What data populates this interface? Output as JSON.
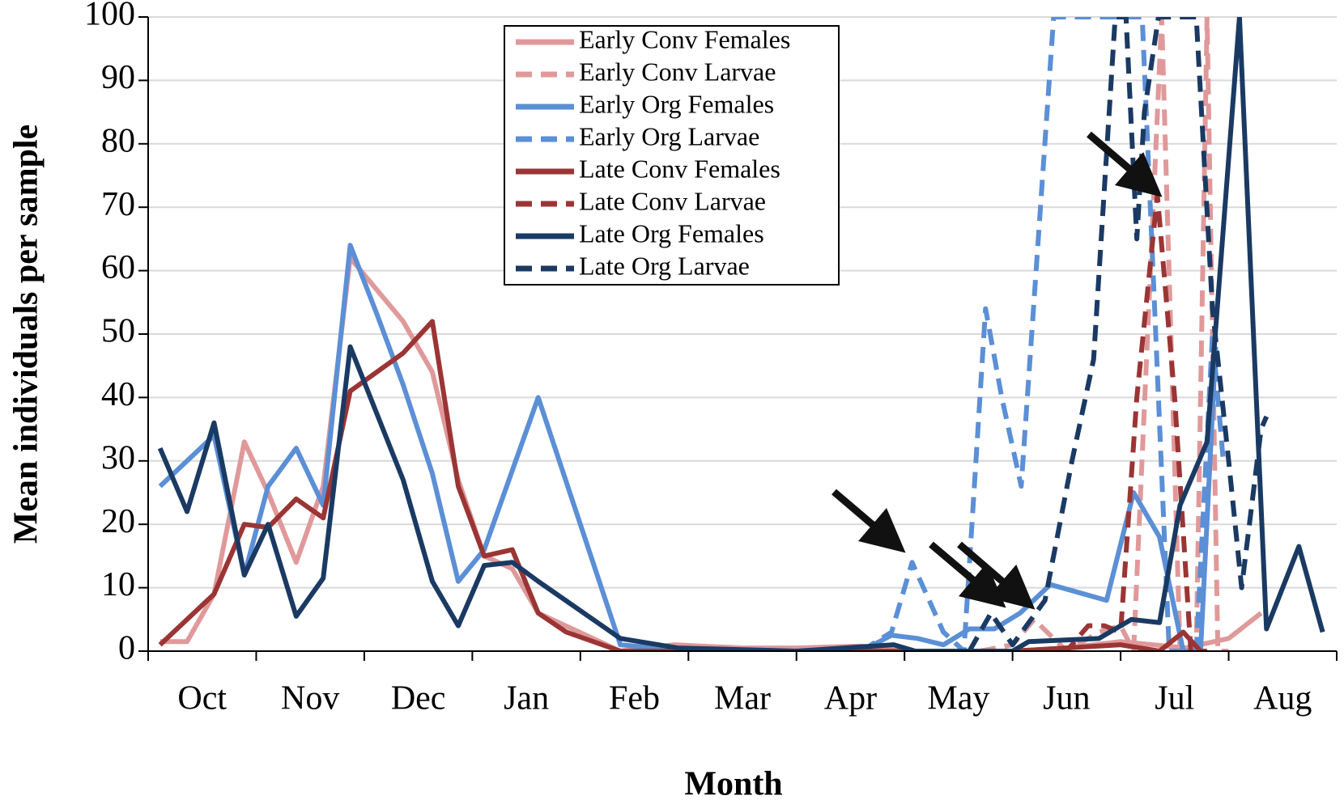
{
  "chart_data": {
    "type": "line",
    "xlabel": "Month",
    "ylabel": "Mean individuals per sample",
    "categories": [
      "Oct",
      "Nov",
      "Dec",
      "Jan",
      "Feb",
      "Mar",
      "Apr",
      "May",
      "Jun",
      "Jul",
      "Aug"
    ],
    "xlim": [
      0,
      11
    ],
    "xticks": [
      0,
      1,
      2,
      3,
      4,
      5,
      6,
      7,
      8,
      9,
      10,
      11
    ],
    "ylim": [
      0,
      100
    ],
    "yticks": [
      0,
      10,
      20,
      30,
      40,
      50,
      60,
      70,
      80,
      90,
      100
    ],
    "grid": true,
    "legend": "top",
    "series": [
      {
        "name": "Early Conv Females",
        "color": "#e0999a",
        "dashed": false,
        "x": [
          0.11,
          0.36,
          0.61,
          0.89,
          1.11,
          1.37,
          1.62,
          1.87,
          2.36,
          2.63,
          2.87,
          3.11,
          3.37,
          3.61,
          4.37,
          4.87,
          5.5,
          6.0,
          6.6,
          7.0,
          8.0,
          8.5,
          9.0,
          9.6,
          10.0,
          10.3
        ],
        "values": [
          1.5,
          1.5,
          9,
          33,
          25,
          14,
          26,
          62,
          52,
          44,
          27,
          15,
          13,
          6,
          0,
          1,
          0.5,
          0.5,
          0.8,
          0,
          0,
          0.5,
          1.5,
          0.5,
          2,
          6
        ]
      },
      {
        "name": "Early Conv Larvae",
        "color": "#e0999a",
        "dashed": true,
        "x": [
          7.0,
          7.7,
          8.0,
          8.2,
          8.5,
          8.8,
          9.0,
          9.12,
          9.38,
          9.55,
          9.7,
          9.8,
          9.9,
          10.0
        ],
        "values": [
          0,
          0,
          1,
          5,
          0,
          3,
          4,
          0,
          100,
          0,
          0,
          100,
          0,
          0
        ]
      },
      {
        "name": "Early Org Females",
        "color": "#5b8fd6",
        "dashed": false,
        "x": [
          0.11,
          0.61,
          0.89,
          1.11,
          1.37,
          1.62,
          1.87,
          2.12,
          2.36,
          2.63,
          2.87,
          3.11,
          3.61,
          4.37,
          5.0,
          6.0,
          6.6,
          6.88,
          7.12,
          7.36,
          7.6,
          7.83,
          8.07,
          8.35,
          8.87,
          9.12,
          9.36,
          9.58,
          9.74,
          9.88
        ],
        "values": [
          26,
          34,
          12,
          26,
          32,
          23,
          64,
          53,
          42,
          28,
          11,
          16,
          40,
          1,
          0,
          0,
          0,
          2.5,
          2,
          1,
          3.5,
          3.5,
          6,
          10.5,
          8,
          25,
          18,
          0,
          0,
          48
        ]
      },
      {
        "name": "Early Org Larvae",
        "color": "#5b8fd6",
        "dashed": true,
        "x": [
          6.6,
          6.88,
          7.07,
          7.36,
          7.55,
          7.75,
          7.9,
          8.08,
          8.38,
          9.2,
          9.3,
          9.45,
          9.7,
          9.85,
          9.95
        ],
        "values": [
          0,
          3,
          14,
          3,
          0,
          54,
          40,
          26,
          100,
          100,
          60,
          0,
          0,
          50,
          30
        ]
      },
      {
        "name": "Late Conv Females",
        "color": "#9b3535",
        "dashed": false,
        "x": [
          0.11,
          0.61,
          0.89,
          1.11,
          1.37,
          1.62,
          1.87,
          2.36,
          2.63,
          2.87,
          3.11,
          3.37,
          3.61,
          3.87,
          4.37,
          5.0,
          6.0,
          7.0,
          8.0,
          9.0,
          9.36,
          9.58,
          9.74
        ],
        "values": [
          1,
          9,
          20,
          19.5,
          24,
          21,
          41,
          47,
          52,
          26,
          15,
          16,
          6,
          3,
          0,
          0,
          0,
          0,
          0,
          1,
          0,
          3,
          0
        ]
      },
      {
        "name": "Late Conv Larvae",
        "color": "#9b3535",
        "dashed": true,
        "x": [
          8.0,
          8.5,
          8.7,
          8.85,
          9.0,
          9.15,
          9.34,
          9.5,
          9.65,
          9.8
        ],
        "values": [
          0,
          0,
          4,
          4,
          3,
          40,
          72,
          40,
          0,
          0
        ]
      },
      {
        "name": "Late Org Females",
        "color": "#1a3a63",
        "dashed": false,
        "x": [
          0.11,
          0.36,
          0.61,
          0.89,
          1.11,
          1.37,
          1.62,
          1.87,
          2.36,
          2.63,
          2.87,
          3.11,
          3.37,
          3.61,
          4.37,
          4.9,
          6.0,
          6.9,
          7.1,
          8.0,
          8.15,
          8.8,
          9.1,
          9.36,
          9.55,
          9.8,
          10.1,
          10.35,
          10.65,
          10.87
        ],
        "values": [
          32,
          22,
          36,
          12,
          20,
          5.5,
          11.5,
          48,
          27,
          11,
          4,
          13.5,
          14,
          11,
          2,
          0.5,
          0,
          1,
          0,
          0,
          1.5,
          2,
          5,
          4.5,
          23,
          33,
          100,
          3.5,
          16.5,
          3
        ]
      },
      {
        "name": "Late Org Larvae",
        "color": "#1a3a63",
        "dashed": true,
        "x": [
          7.6,
          7.8,
          8.0,
          8.3,
          8.55,
          8.75,
          8.95,
          9.05,
          9.15,
          9.22,
          9.35,
          9.7,
          9.85,
          10.0,
          10.12,
          10.3,
          10.35
        ],
        "values": [
          0,
          6,
          1,
          8,
          30,
          46,
          100,
          100,
          65,
          85,
          100,
          100,
          54,
          30,
          10,
          35,
          37
        ]
      }
    ]
  }
}
